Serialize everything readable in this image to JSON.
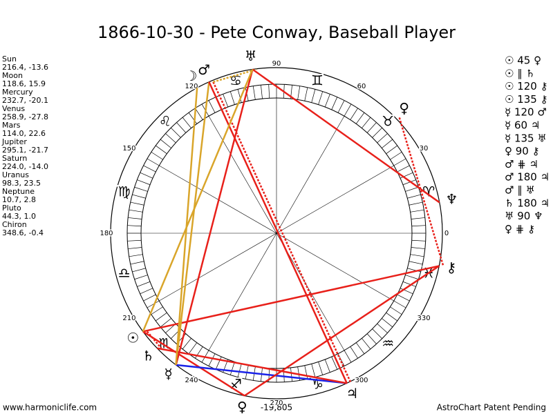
{
  "title": "1866-10-30 - Pete Conway, Baseball Player",
  "positions": [
    {
      "name": "Sun",
      "value": "216.4, -13.6"
    },
    {
      "name": "Moon",
      "value": "118.6, 15.9"
    },
    {
      "name": "Mercury",
      "value": "232.7, -20.1"
    },
    {
      "name": "Venus",
      "value": "258.9, -27.8"
    },
    {
      "name": "Mars",
      "value": "114.0, 22.6"
    },
    {
      "name": "Jupiter",
      "value": "295.1, -21.7"
    },
    {
      "name": "Saturn",
      "value": "224.0, -14.0"
    },
    {
      "name": "Uranus",
      "value": "98.3, 23.5"
    },
    {
      "name": "Neptune",
      "value": "10.7, 2.8"
    },
    {
      "name": "Pluto",
      "value": "44.3, 1.0"
    },
    {
      "name": "Chiron",
      "value": "348.6, -0.4"
    }
  ],
  "wheel": {
    "degree_labels": [
      "0",
      "30",
      "60",
      "90",
      "120",
      "150",
      "180",
      "210",
      "240",
      "270",
      "300",
      "330"
    ],
    "signs": [
      "♈",
      "♉",
      "♊",
      "♋",
      "♌",
      "♍",
      "♎",
      "♏",
      "♐",
      "♑",
      "♒",
      "♓"
    ],
    "planet_glyphs": [
      "☉",
      "☽",
      "☿",
      "♀",
      "♂",
      "♃",
      "♄",
      "♅",
      "♆",
      "♀",
      "⚷"
    ]
  },
  "aspects": [
    "☉ 45 ♀",
    "☉ ∥ ♄",
    "☉ 120 ⚷",
    "☉ 135 ⚷",
    "☿ 120 ♂",
    "☿ 60 ♃",
    "☿ 135 ♅",
    "♀ 90 ⚷",
    "♂ ⋕ ♃",
    "♂ 180 ♃",
    "♂ ∥ ♅",
    "♄ 180 ♃",
    "♅ 90 ♆",
    "♀ ⋕ ⚷"
  ],
  "footer": {
    "site": "www.harmoniclife.com",
    "score": "-19,805",
    "notice": "AstroChart Patent Pending"
  }
}
